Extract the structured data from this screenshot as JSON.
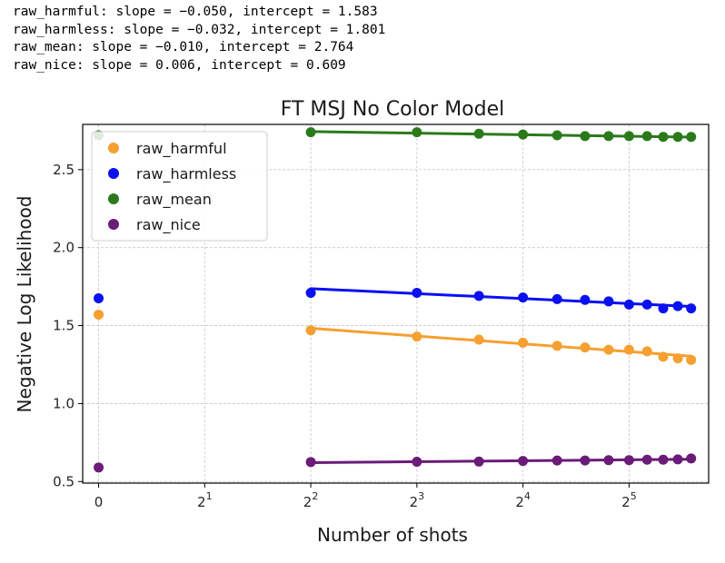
{
  "console_lines": [
    "raw_harmful: slope = −0.050, intercept = 1.583",
    "raw_harmless: slope = −0.032, intercept = 1.801",
    "raw_mean: slope = −0.010, intercept = 2.764",
    "raw_nice: slope = 0.006, intercept = 0.609"
  ],
  "chart_data": {
    "type": "scatter",
    "title": "FT MSJ No Color Model",
    "xlabel": "Number of shots",
    "ylabel": "Negative Log Likelihood",
    "x_scale": "log2 with zero position",
    "x_ticks": [
      0,
      2,
      4,
      8,
      16,
      32
    ],
    "x_tick_labels": [
      {
        "base": "0",
        "exp": ""
      },
      {
        "base": "2",
        "exp": "1"
      },
      {
        "base": "2",
        "exp": "2"
      },
      {
        "base": "2",
        "exp": "3"
      },
      {
        "base": "2",
        "exp": "4"
      },
      {
        "base": "2",
        "exp": "5"
      }
    ],
    "xlim_log2": [
      -0.15,
      5.75
    ],
    "ylim": [
      0.49,
      2.79
    ],
    "y_ticks": [
      0.5,
      1.0,
      1.5,
      2.0,
      2.5
    ],
    "y_tick_labels": [
      "0.5",
      "1.0",
      "1.5",
      "2.0",
      "2.5"
    ],
    "grid": true,
    "legend_position": "top-left",
    "x": [
      4,
      8,
      12,
      16,
      20,
      24,
      28,
      32,
      36,
      40,
      44,
      48
    ],
    "series": [
      {
        "name": "raw_harmful",
        "color": "#f5a030",
        "zero_shot": 1.57,
        "values": [
          1.47,
          1.43,
          1.41,
          1.39,
          1.37,
          1.36,
          1.345,
          1.345,
          1.335,
          1.3,
          1.29,
          1.28
        ],
        "fit": {
          "slope": -0.05,
          "intercept": 1.583
        }
      },
      {
        "name": "raw_harmless",
        "color": "#0a10f0",
        "zero_shot": 1.675,
        "values": [
          1.71,
          1.71,
          1.69,
          1.68,
          1.67,
          1.665,
          1.655,
          1.635,
          1.635,
          1.61,
          1.625,
          1.61
        ],
        "fit": {
          "slope": -0.032,
          "intercept": 1.801
        }
      },
      {
        "name": "raw_mean",
        "color": "#2a7a1c",
        "zero_shot": 2.72,
        "values": [
          2.74,
          2.74,
          2.73,
          2.725,
          2.72,
          2.715,
          2.715,
          2.715,
          2.715,
          2.71,
          2.71,
          2.71
        ],
        "fit": {
          "slope": -0.01,
          "intercept": 2.764
        }
      },
      {
        "name": "raw_nice",
        "color": "#6b1b78",
        "zero_shot": 0.59,
        "values": [
          0.625,
          0.627,
          0.628,
          0.632,
          0.635,
          0.635,
          0.637,
          0.637,
          0.64,
          0.64,
          0.642,
          0.648
        ],
        "fit": {
          "slope": 0.006,
          "intercept": 0.609
        }
      }
    ]
  }
}
